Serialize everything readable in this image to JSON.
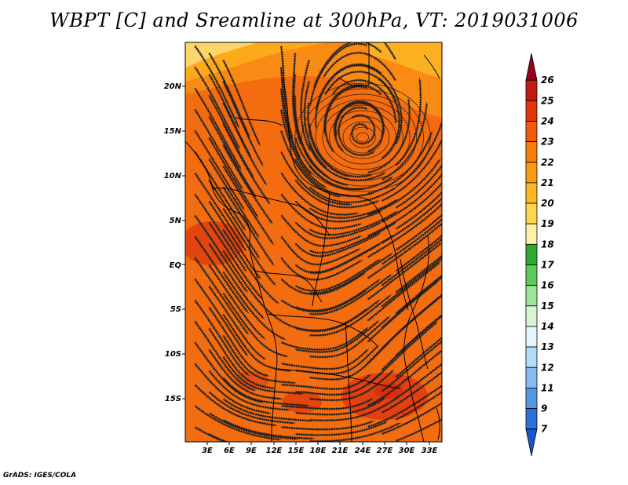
{
  "title": "WBPT [C] and Sreamline at 300hPa, VT: 2019031006",
  "credit": "GrADS: IGES/COLA",
  "lat_labels": [
    "20N",
    "15N",
    "10N",
    "5N",
    "EQ",
    "5S",
    "10S",
    "15S"
  ],
  "lon_labels": [
    "3E",
    "6E",
    "9E",
    "12E",
    "15E",
    "18E",
    "21E",
    "24E",
    "27E",
    "30E",
    "33E"
  ],
  "colorbar": {
    "levels": [
      "26",
      "25",
      "24",
      "23",
      "22",
      "21",
      "20",
      "19",
      "18",
      "17",
      "16",
      "15",
      "14",
      "13",
      "12",
      "11",
      "9",
      "7"
    ],
    "colors": [
      "#96001c",
      "#c21a0e",
      "#e1350e",
      "#f15a0c",
      "#f97d0b",
      "#fb9b13",
      "#fdb924",
      "#fed54d",
      "#fff0a6",
      "#2fa832",
      "#5cc95b",
      "#9ee49a",
      "#d7f5d4",
      "#e4f6fb",
      "#b3dcf6",
      "#84bcf0",
      "#5598e6",
      "#2c72d9",
      "#1a56c9"
    ]
  },
  "map": {
    "field": "wet-bulb potential temperature",
    "base_color": "#f36c10",
    "cyclone_center": "16N 25E",
    "features": [
      "warm cores near 12-15S",
      "cooler band in far north (19-21 C)"
    ]
  }
}
